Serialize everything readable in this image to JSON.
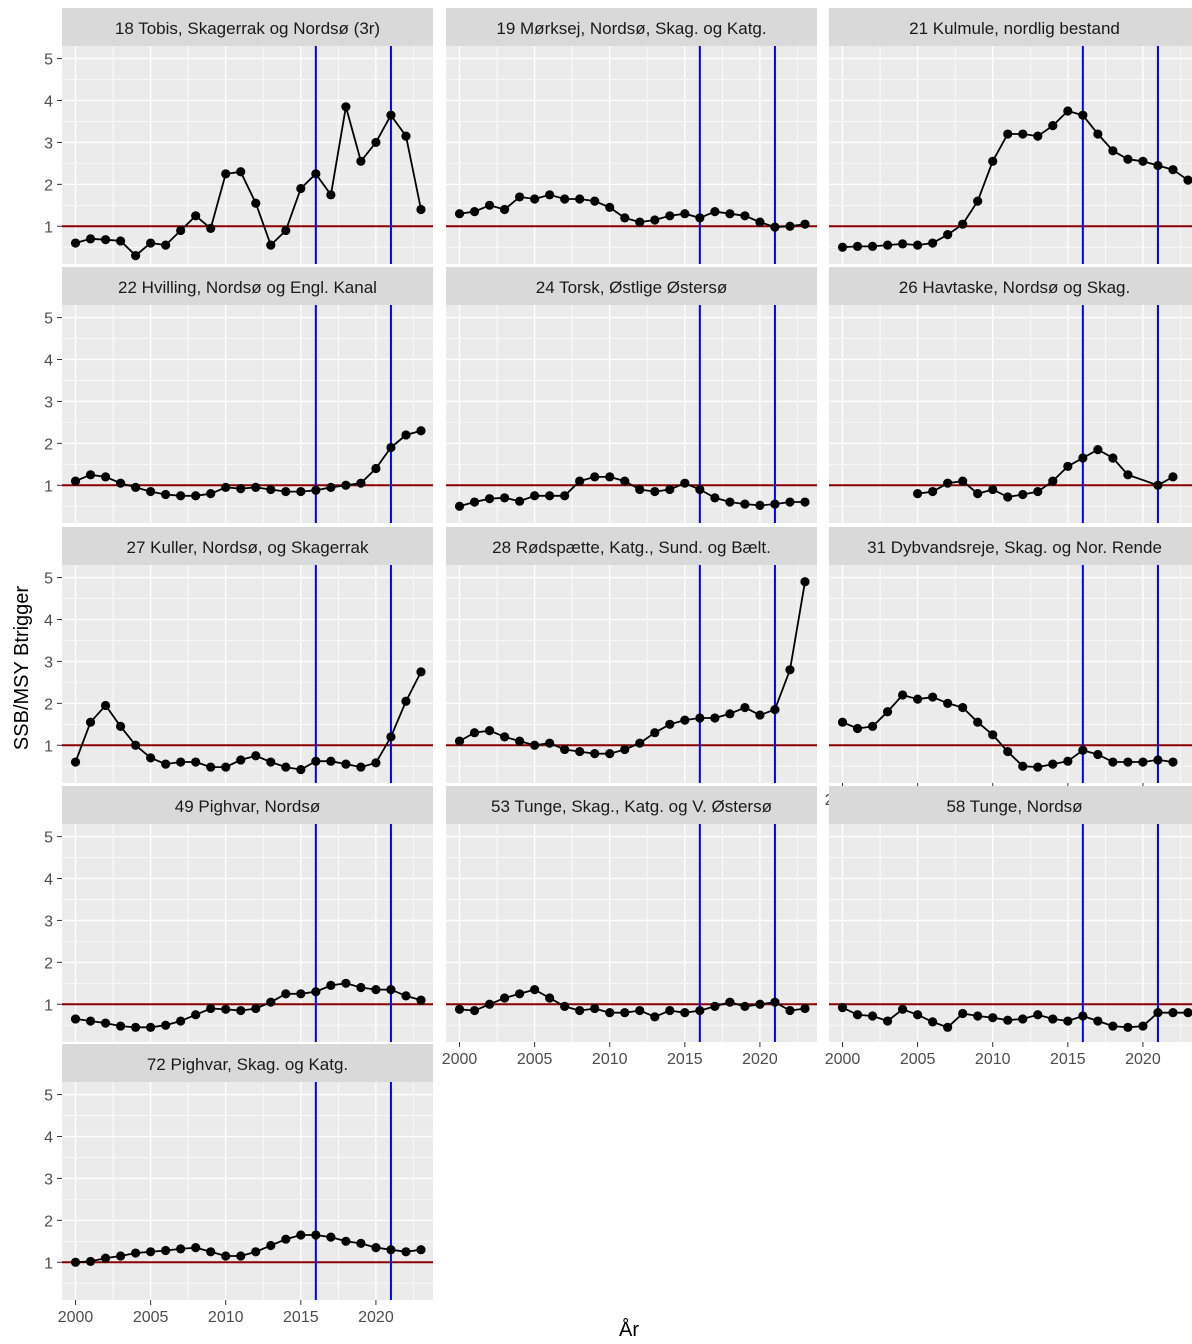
{
  "figure": {
    "xlabel": "År",
    "ylabel": "SSB/MSY Btrigger",
    "x_ticks": [
      2000,
      2005,
      2010,
      2015,
      2020
    ],
    "y_ticks": [
      1,
      2,
      3,
      4,
      5
    ],
    "xlim": [
      1999.1,
      2023.8
    ],
    "ylim": [
      0.1,
      5.3
    ],
    "reference_line": {
      "y": 1,
      "color": "#8B0000"
    },
    "vertical_lines": {
      "x": [
        2016,
        2021
      ],
      "color": "#0000FF"
    },
    "colors": {
      "panel_bg": "#EBEBEB",
      "strip_bg": "#D9D9D9",
      "grid": "#FFFFFF",
      "series": "#000000",
      "axis_text": "#4D4D4D"
    },
    "grid": true,
    "panel_grid_cols": 3,
    "panel_grid_rows": 5
  },
  "chart_data": [
    {
      "type": "line",
      "title": "18 Tobis, Skagerrak og Nordsø (3r)",
      "show_x_axis": false,
      "show_y_axis": true,
      "x": [
        2000,
        2001,
        2002,
        2003,
        2004,
        2005,
        2006,
        2007,
        2008,
        2009,
        2010,
        2011,
        2012,
        2013,
        2014,
        2015,
        2016,
        2017,
        2018,
        2019,
        2020,
        2021,
        2022,
        2023
      ],
      "y": [
        0.6,
        0.7,
        0.68,
        0.65,
        0.3,
        0.6,
        0.55,
        0.9,
        1.25,
        0.95,
        2.25,
        2.3,
        1.55,
        0.55,
        0.9,
        1.9,
        2.25,
        1.75,
        3.85,
        2.55,
        3.0,
        3.65,
        3.15,
        1.4
      ]
    },
    {
      "type": "line",
      "title": "19 Mørksej, Nordsø, Skag.  og  Katg.",
      "show_x_axis": false,
      "show_y_axis": false,
      "x": [
        2000,
        2001,
        2002,
        2003,
        2004,
        2005,
        2006,
        2007,
        2008,
        2009,
        2010,
        2011,
        2012,
        2013,
        2014,
        2015,
        2016,
        2017,
        2018,
        2019,
        2020,
        2021,
        2022,
        2023
      ],
      "y": [
        1.3,
        1.35,
        1.5,
        1.4,
        1.7,
        1.65,
        1.75,
        1.65,
        1.65,
        1.6,
        1.45,
        1.2,
        1.1,
        1.15,
        1.25,
        1.3,
        1.2,
        1.35,
        1.3,
        1.25,
        1.1,
        0.98,
        1.0,
        1.05
      ]
    },
    {
      "type": "line",
      "title": "21 Kulmule, nordlig bestand",
      "show_x_axis": false,
      "show_y_axis": false,
      "x": [
        2000,
        2001,
        2002,
        2003,
        2004,
        2005,
        2006,
        2007,
        2008,
        2009,
        2010,
        2011,
        2012,
        2013,
        2014,
        2015,
        2016,
        2017,
        2018,
        2019,
        2020,
        2021,
        2022,
        2023
      ],
      "y": [
        0.5,
        0.52,
        0.52,
        0.55,
        0.58,
        0.55,
        0.6,
        0.8,
        1.05,
        1.6,
        2.55,
        3.2,
        3.2,
        3.15,
        3.4,
        3.75,
        3.65,
        3.2,
        2.8,
        2.6,
        2.55,
        2.45,
        2.35,
        2.1
      ]
    },
    {
      "type": "line",
      "title": "22 Hvilling, Nordsø og Engl. Kanal",
      "show_x_axis": false,
      "show_y_axis": true,
      "x": [
        2000,
        2001,
        2002,
        2003,
        2004,
        2005,
        2006,
        2007,
        2008,
        2009,
        2010,
        2011,
        2012,
        2013,
        2014,
        2015,
        2016,
        2017,
        2018,
        2019,
        2020,
        2021,
        2022,
        2023
      ],
      "y": [
        1.1,
        1.25,
        1.2,
        1.05,
        0.95,
        0.85,
        0.78,
        0.75,
        0.75,
        0.8,
        0.95,
        0.92,
        0.95,
        0.9,
        0.85,
        0.85,
        0.88,
        0.95,
        1.0,
        1.05,
        1.4,
        1.9,
        2.2,
        2.3
      ]
    },
    {
      "type": "line",
      "title": "24 Torsk, Østlige Østersø",
      "show_x_axis": false,
      "show_y_axis": false,
      "x": [
        2000,
        2001,
        2002,
        2003,
        2004,
        2005,
        2006,
        2007,
        2008,
        2009,
        2010,
        2011,
        2012,
        2013,
        2014,
        2015,
        2016,
        2017,
        2018,
        2019,
        2020,
        2021,
        2022,
        2023
      ],
      "y": [
        0.5,
        0.6,
        0.68,
        0.7,
        0.62,
        0.75,
        0.75,
        0.75,
        1.1,
        1.2,
        1.2,
        1.1,
        0.9,
        0.85,
        0.9,
        1.05,
        0.9,
        0.7,
        0.6,
        0.55,
        0.52,
        0.55,
        0.6,
        0.6
      ]
    },
    {
      "type": "line",
      "title": "26 Havtaske, Nordsø og Skag.",
      "show_x_axis": false,
      "show_y_axis": false,
      "x": [
        2005,
        2006,
        2007,
        2008,
        2009,
        2010,
        2011,
        2012,
        2013,
        2014,
        2015,
        2016,
        2017,
        2018,
        2019,
        2021,
        2022
      ],
      "y": [
        0.8,
        0.85,
        1.05,
        1.1,
        0.8,
        0.9,
        0.72,
        0.78,
        0.85,
        1.1,
        1.45,
        1.65,
        1.85,
        1.65,
        1.25,
        1.0,
        1.2
      ]
    },
    {
      "type": "line",
      "title": "27 Kuller, Nordsø, og Skagerrak",
      "show_x_axis": false,
      "show_y_axis": true,
      "x": [
        2000,
        2001,
        2002,
        2003,
        2004,
        2005,
        2006,
        2007,
        2008,
        2009,
        2010,
        2011,
        2012,
        2013,
        2014,
        2015,
        2016,
        2017,
        2018,
        2019,
        2020,
        2021,
        2022,
        2023
      ],
      "y": [
        0.6,
        1.55,
        1.95,
        1.45,
        1.0,
        0.7,
        0.55,
        0.6,
        0.6,
        0.48,
        0.48,
        0.65,
        0.75,
        0.6,
        0.48,
        0.42,
        0.62,
        0.62,
        0.55,
        0.48,
        0.58,
        1.2,
        2.05,
        2.75
      ]
    },
    {
      "type": "line",
      "title": "28 Rødspætte, Katg., Sund. og Bælt.",
      "show_x_axis": false,
      "show_y_axis": false,
      "x": [
        2000,
        2001,
        2002,
        2003,
        2004,
        2005,
        2006,
        2007,
        2008,
        2009,
        2010,
        2011,
        2012,
        2013,
        2014,
        2015,
        2016,
        2017,
        2018,
        2019,
        2020,
        2021,
        2022,
        2023
      ],
      "y": [
        1.1,
        1.3,
        1.35,
        1.2,
        1.1,
        1.0,
        1.05,
        0.9,
        0.85,
        0.8,
        0.8,
        0.9,
        1.05,
        1.3,
        1.5,
        1.6,
        1.65,
        1.65,
        1.75,
        1.9,
        1.72,
        1.85,
        2.8,
        4.9
      ]
    },
    {
      "type": "line",
      "title": "31 Dybvandsreje, Skag. og Nor. Rende",
      "show_x_axis": true,
      "show_y_axis": false,
      "x": [
        2000,
        2001,
        2002,
        2003,
        2004,
        2005,
        2006,
        2007,
        2008,
        2009,
        2010,
        2011,
        2012,
        2013,
        2014,
        2015,
        2016,
        2017,
        2018,
        2019,
        2020,
        2021,
        2022
      ],
      "y": [
        1.55,
        1.4,
        1.45,
        1.8,
        2.2,
        2.1,
        2.15,
        2.0,
        1.9,
        1.55,
        1.25,
        0.85,
        0.5,
        0.48,
        0.55,
        0.62,
        0.88,
        0.78,
        0.6,
        0.6,
        0.6,
        0.65,
        0.6
      ]
    },
    {
      "type": "line",
      "title": "49 Pighvar, Nordsø",
      "show_x_axis": false,
      "show_y_axis": true,
      "x": [
        2000,
        2001,
        2002,
        2003,
        2004,
        2005,
        2006,
        2007,
        2008,
        2009,
        2010,
        2011,
        2012,
        2013,
        2014,
        2015,
        2016,
        2017,
        2018,
        2019,
        2020,
        2021,
        2022,
        2023
      ],
      "y": [
        0.65,
        0.6,
        0.55,
        0.48,
        0.45,
        0.45,
        0.5,
        0.6,
        0.75,
        0.9,
        0.88,
        0.85,
        0.9,
        1.05,
        1.25,
        1.25,
        1.3,
        1.45,
        1.5,
        1.4,
        1.35,
        1.35,
        1.2,
        1.1
      ]
    },
    {
      "type": "line",
      "title": "53 Tunge, Skag., Katg. og V. Østersø",
      "show_x_axis": true,
      "show_y_axis": false,
      "x": [
        2000,
        2001,
        2002,
        2003,
        2004,
        2005,
        2006,
        2007,
        2008,
        2009,
        2010,
        2011,
        2012,
        2013,
        2014,
        2015,
        2016,
        2017,
        2018,
        2019,
        2020,
        2021,
        2022,
        2023
      ],
      "y": [
        0.88,
        0.85,
        1.0,
        1.15,
        1.25,
        1.35,
        1.15,
        0.95,
        0.85,
        0.9,
        0.8,
        0.8,
        0.85,
        0.7,
        0.85,
        0.8,
        0.85,
        0.95,
        1.05,
        0.95,
        1.0,
        1.05,
        0.85,
        0.9
      ]
    },
    {
      "type": "line",
      "title": "58 Tunge, Nordsø",
      "show_x_axis": true,
      "show_y_axis": false,
      "x": [
        2000,
        2001,
        2002,
        2003,
        2004,
        2005,
        2006,
        2007,
        2008,
        2009,
        2010,
        2011,
        2012,
        2013,
        2014,
        2015,
        2016,
        2017,
        2018,
        2019,
        2020,
        2021,
        2022,
        2023
      ],
      "y": [
        0.92,
        0.75,
        0.72,
        0.6,
        0.88,
        0.75,
        0.58,
        0.45,
        0.78,
        0.72,
        0.68,
        0.62,
        0.65,
        0.75,
        0.65,
        0.6,
        0.72,
        0.6,
        0.48,
        0.45,
        0.48,
        0.8,
        0.8,
        0.8
      ]
    },
    {
      "type": "line",
      "title": "72 Pighvar, Skag. og Katg.",
      "show_x_axis": true,
      "show_y_axis": true,
      "x": [
        2000,
        2001,
        2002,
        2003,
        2004,
        2005,
        2006,
        2007,
        2008,
        2009,
        2010,
        2011,
        2012,
        2013,
        2014,
        2015,
        2016,
        2017,
        2018,
        2019,
        2020,
        2021,
        2022,
        2023
      ],
      "y": [
        1.0,
        1.02,
        1.1,
        1.15,
        1.22,
        1.25,
        1.28,
        1.32,
        1.35,
        1.25,
        1.15,
        1.15,
        1.25,
        1.4,
        1.55,
        1.65,
        1.65,
        1.6,
        1.5,
        1.45,
        1.35,
        1.3,
        1.25,
        1.3
      ]
    }
  ]
}
